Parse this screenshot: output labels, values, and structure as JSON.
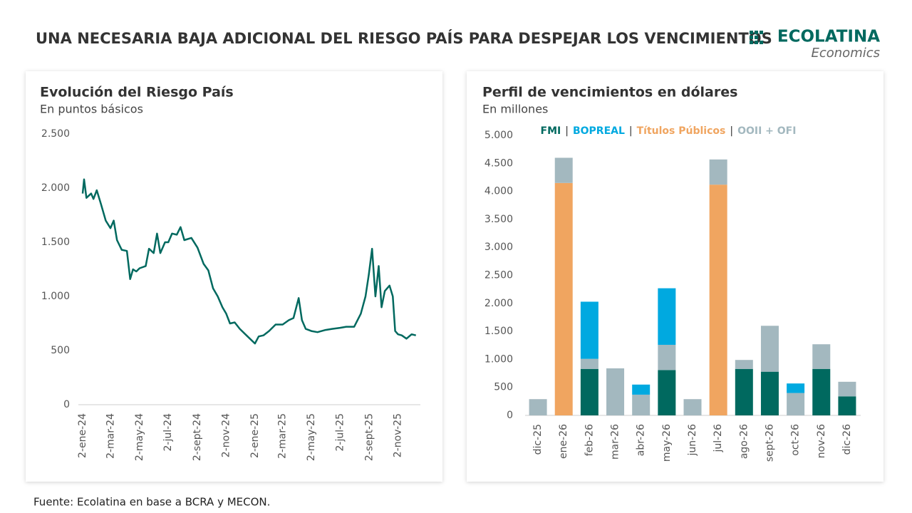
{
  "header": {
    "title": "UNA NECESARIA BAJA ADICIONAL DEL RIESGO PAÍS PARA DESPEJAR LOS VENCIMIENTOS",
    "logo": "ECOLATINA",
    "logo_sub": "Economics"
  },
  "footer": "Fuente: Ecolatina en base a BCRA y MECON.",
  "chart_data": [
    {
      "type": "line",
      "title": "Evolución del Riesgo País",
      "subtitle": "En puntos básicos",
      "color": "#00695f",
      "x": [
        "2024-01-02",
        "2024-01-05",
        "2024-01-10",
        "2024-01-20",
        "2024-01-25",
        "2024-02-01",
        "2024-02-10",
        "2024-02-20",
        "2024-03-01",
        "2024-03-08",
        "2024-03-15",
        "2024-03-25",
        "2024-04-05",
        "2024-04-12",
        "2024-04-18",
        "2024-04-25",
        "2024-05-02",
        "2024-05-15",
        "2024-05-22",
        "2024-06-01",
        "2024-06-08",
        "2024-06-15",
        "2024-06-25",
        "2024-07-02",
        "2024-07-10",
        "2024-07-20",
        "2024-07-28",
        "2024-08-05",
        "2024-08-20",
        "2024-09-02",
        "2024-09-15",
        "2024-09-25",
        "2024-10-05",
        "2024-10-15",
        "2024-10-25",
        "2024-11-02",
        "2024-11-10",
        "2024-11-20",
        "2024-12-01",
        "2024-12-15",
        "2025-01-02",
        "2025-01-10",
        "2025-01-20",
        "2025-02-01",
        "2025-02-15",
        "2025-03-02",
        "2025-03-15",
        "2025-03-25",
        "2025-04-05",
        "2025-04-12",
        "2025-04-20",
        "2025-05-02",
        "2025-05-15",
        "2025-06-01",
        "2025-06-15",
        "2025-07-02",
        "2025-07-15",
        "2025-08-01",
        "2025-08-15",
        "2025-08-25",
        "2025-09-01",
        "2025-09-08",
        "2025-09-15",
        "2025-09-22",
        "2025-09-28",
        "2025-10-05",
        "2025-10-15",
        "2025-10-22",
        "2025-10-27",
        "2025-11-02",
        "2025-11-10",
        "2025-11-20",
        "2025-12-01",
        "2025-12-10"
      ],
      "values": [
        1950,
        2080,
        1910,
        1950,
        1900,
        1980,
        1850,
        1700,
        1630,
        1700,
        1520,
        1430,
        1420,
        1160,
        1250,
        1230,
        1260,
        1280,
        1440,
        1400,
        1580,
        1400,
        1500,
        1500,
        1580,
        1570,
        1640,
        1520,
        1540,
        1450,
        1300,
        1240,
        1075,
        1000,
        900,
        840,
        750,
        760,
        700,
        640,
        565,
        630,
        640,
        680,
        740,
        740,
        780,
        800,
        985,
        780,
        700,
        680,
        670,
        690,
        700,
        710,
        720,
        720,
        840,
        1000,
        1200,
        1440,
        1000,
        1280,
        900,
        1050,
        1100,
        1000,
        680,
        650,
        640,
        610,
        650,
        640
      ],
      "xlim": [
        "2024-01-02",
        "2025-12-12"
      ],
      "xticks": [
        {
          "value": "2024-01-02",
          "label": "2-ene-24"
        },
        {
          "value": "2024-03-02",
          "label": "2-mar-24"
        },
        {
          "value": "2024-05-02",
          "label": "2-may-24"
        },
        {
          "value": "2024-07-02",
          "label": "2-jul-24"
        },
        {
          "value": "2024-09-02",
          "label": "2-sept-24"
        },
        {
          "value": "2024-11-02",
          "label": "2-nov-24"
        },
        {
          "value": "2025-01-02",
          "label": "2-ene-25"
        },
        {
          "value": "2025-03-02",
          "label": "2-mar-25"
        },
        {
          "value": "2025-05-02",
          "label": "2-may-25"
        },
        {
          "value": "2025-07-02",
          "label": "2-jul-25"
        },
        {
          "value": "2025-09-02",
          "label": "2-sept-25"
        },
        {
          "value": "2025-11-02",
          "label": "2-nov-25"
        }
      ],
      "ylim": [
        0,
        2500
      ],
      "yticks": [
        0,
        500,
        {
          "value": 1000,
          "label": "1.000"
        },
        {
          "value": 1500,
          "label": "1.500"
        },
        {
          "value": 2000,
          "label": "2.000"
        },
        {
          "value": 2500,
          "label": "2.500"
        }
      ]
    },
    {
      "type": "stacked_bar",
      "title": "Perfil de vencimientos en dólares",
      "subtitle": "En millones",
      "legend_separator": "|",
      "categories": [
        "dic-25",
        "ene-26",
        "feb-26",
        "mar-26",
        "abr-26",
        "may-26",
        "jun-26",
        "jul-26",
        "ago-26",
        "sept-26",
        "oct-26",
        "nov-26",
        "dic-26"
      ],
      "series": [
        {
          "name": "FMI",
          "color": "#00695f",
          "values": [
            null,
            null,
            830,
            null,
            null,
            810,
            null,
            null,
            830,
            780,
            null,
            830,
            340
          ]
        },
        {
          "name": "BOPREAL",
          "color": "#00a9e0",
          "values": [
            null,
            null,
            1020,
            null,
            180,
            1010,
            null,
            null,
            null,
            null,
            170,
            null,
            null
          ]
        },
        {
          "name": "Títulos Públicos",
          "color": "#f0a560",
          "values": [
            null,
            4150,
            null,
            null,
            null,
            null,
            null,
            4120,
            null,
            null,
            null,
            null,
            null
          ]
        },
        {
          "name": "OOII + OFI",
          "color": "#a3b8bf",
          "values": [
            290,
            450,
            180,
            840,
            370,
            450,
            290,
            450,
            160,
            820,
            400,
            440,
            260
          ]
        }
      ],
      "stack_order": [
        0,
        2,
        3,
        1
      ],
      "ylim": [
        0,
        5000
      ],
      "yticks": [
        0,
        500,
        {
          "value": 1000,
          "label": "1.000"
        },
        {
          "value": 1500,
          "label": "1.500"
        },
        {
          "value": 2000,
          "label": "2.000"
        },
        {
          "value": 2500,
          "label": "2.500"
        },
        {
          "value": 3000,
          "label": "3.000"
        },
        {
          "value": 3500,
          "label": "3.500"
        },
        {
          "value": 4000,
          "label": "4.000"
        },
        {
          "value": 4500,
          "label": "4.500"
        },
        {
          "value": 5000,
          "label": "5.000"
        }
      ]
    }
  ]
}
